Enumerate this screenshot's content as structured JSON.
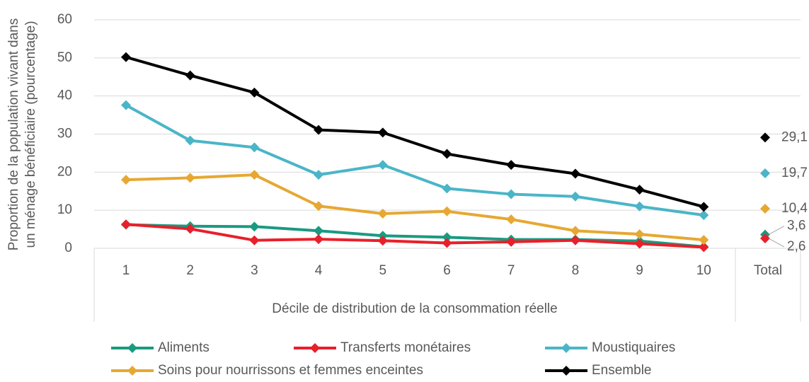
{
  "chart_data": {
    "type": "line",
    "ylabel": [
      "Proportion de la population vivant dans",
      "un ménage bénéficiaire (pourcentage)"
    ],
    "xlabel": "Décile de distribution de la consommation réelle",
    "categories": [
      "1",
      "2",
      "3",
      "4",
      "5",
      "6",
      "7",
      "8",
      "9",
      "10",
      "Total"
    ],
    "ylim": [
      0,
      60
    ],
    "yticks": [
      0,
      10,
      20,
      30,
      40,
      50,
      60
    ],
    "grid": true,
    "series": [
      {
        "name": "Aliments",
        "color": "#1a9a80",
        "values": [
          6.2,
          5.8,
          5.7,
          4.6,
          3.3,
          2.9,
          2.3,
          2.3,
          1.9,
          0.4,
          null
        ],
        "total": 3.6,
        "total_label": "3,6"
      },
      {
        "name": "Transferts monétaires",
        "color": "#e8202a",
        "values": [
          6.3,
          5.1,
          2.1,
          2.4,
          2.0,
          1.4,
          1.7,
          2.1,
          1.2,
          0.3,
          null
        ],
        "total": 2.6,
        "total_label": "2,6"
      },
      {
        "name": "Moustiquaires",
        "color": "#4bb5c8",
        "values": [
          37.6,
          28.3,
          26.5,
          19.3,
          21.9,
          15.7,
          14.2,
          13.6,
          11.0,
          8.7,
          null
        ],
        "total": 19.7,
        "total_label": "19,7"
      },
      {
        "name": "Soins pour nourrissons et femmes enceintes",
        "color": "#e6a832",
        "values": [
          18.0,
          18.5,
          19.3,
          11.1,
          9.1,
          9.7,
          7.6,
          4.6,
          3.7,
          2.2,
          null
        ],
        "total": 10.4,
        "total_label": "10,4"
      },
      {
        "name": "Ensemble",
        "color": "#000000",
        "values": [
          50.2,
          45.4,
          40.9,
          31.1,
          30.4,
          24.8,
          21.9,
          19.6,
          15.4,
          10.9,
          null
        ],
        "total": 29.1,
        "total_label": "29,1"
      }
    ]
  }
}
